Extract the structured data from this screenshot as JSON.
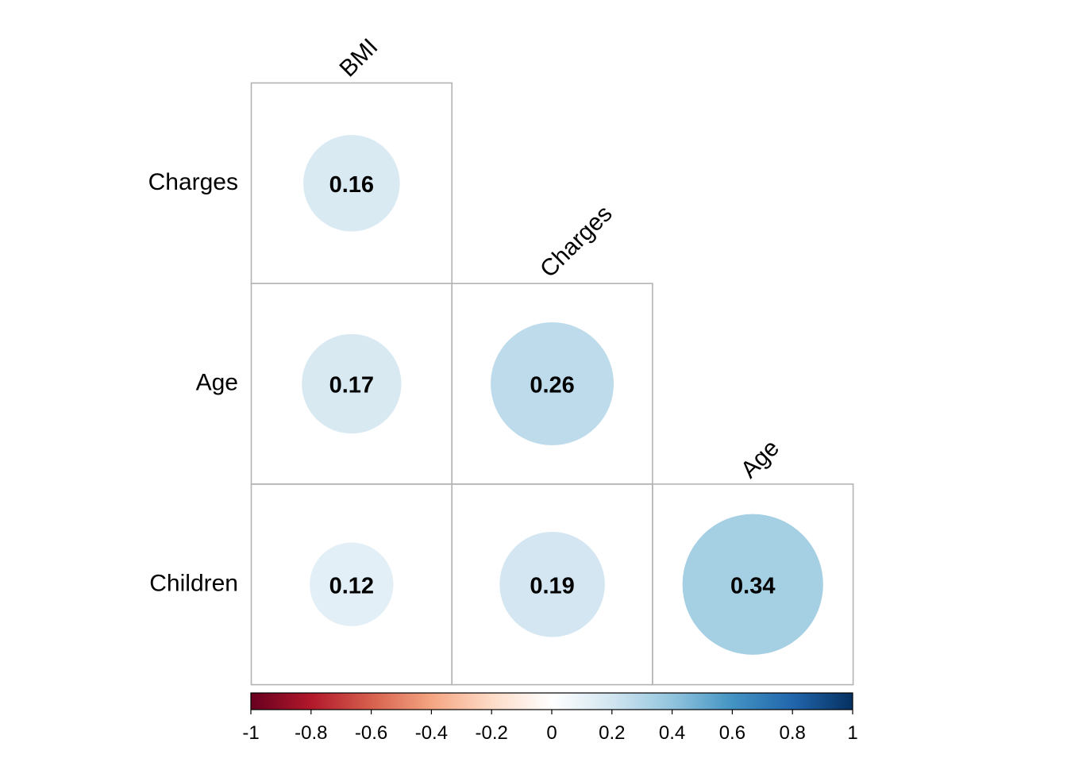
{
  "chart_data": {
    "type": "heatmap",
    "style": "correlation-matrix-lower-triangle-circles",
    "row_labels": [
      "Charges",
      "Age",
      "Children"
    ],
    "col_labels": [
      "BMI",
      "Charges",
      "Age"
    ],
    "cells": [
      {
        "row": 0,
        "col": 0,
        "value": 0.16,
        "label": "0.16"
      },
      {
        "row": 1,
        "col": 0,
        "value": 0.17,
        "label": "0.17"
      },
      {
        "row": 1,
        "col": 1,
        "value": 0.26,
        "label": "0.26"
      },
      {
        "row": 2,
        "col": 0,
        "value": 0.12,
        "label": "0.12"
      },
      {
        "row": 2,
        "col": 1,
        "value": 0.19,
        "label": "0.19"
      },
      {
        "row": 2,
        "col": 2,
        "value": 0.34,
        "label": "0.34"
      }
    ],
    "colorbar": {
      "range": [
        -1,
        1
      ],
      "ticks": [
        "-1",
        "-0.8",
        "-0.6",
        "-0.4",
        "-0.2",
        "0",
        "0.2",
        "0.4",
        "0.6",
        "0.8",
        "1"
      ],
      "colors": [
        "#67001F",
        "#B2182B",
        "#D6604D",
        "#F4A582",
        "#FDDBC7",
        "#FFFFFF",
        "#D1E5F0",
        "#92C5DE",
        "#4393C3",
        "#2166AC",
        "#053061"
      ],
      "placement": "bottom"
    }
  }
}
